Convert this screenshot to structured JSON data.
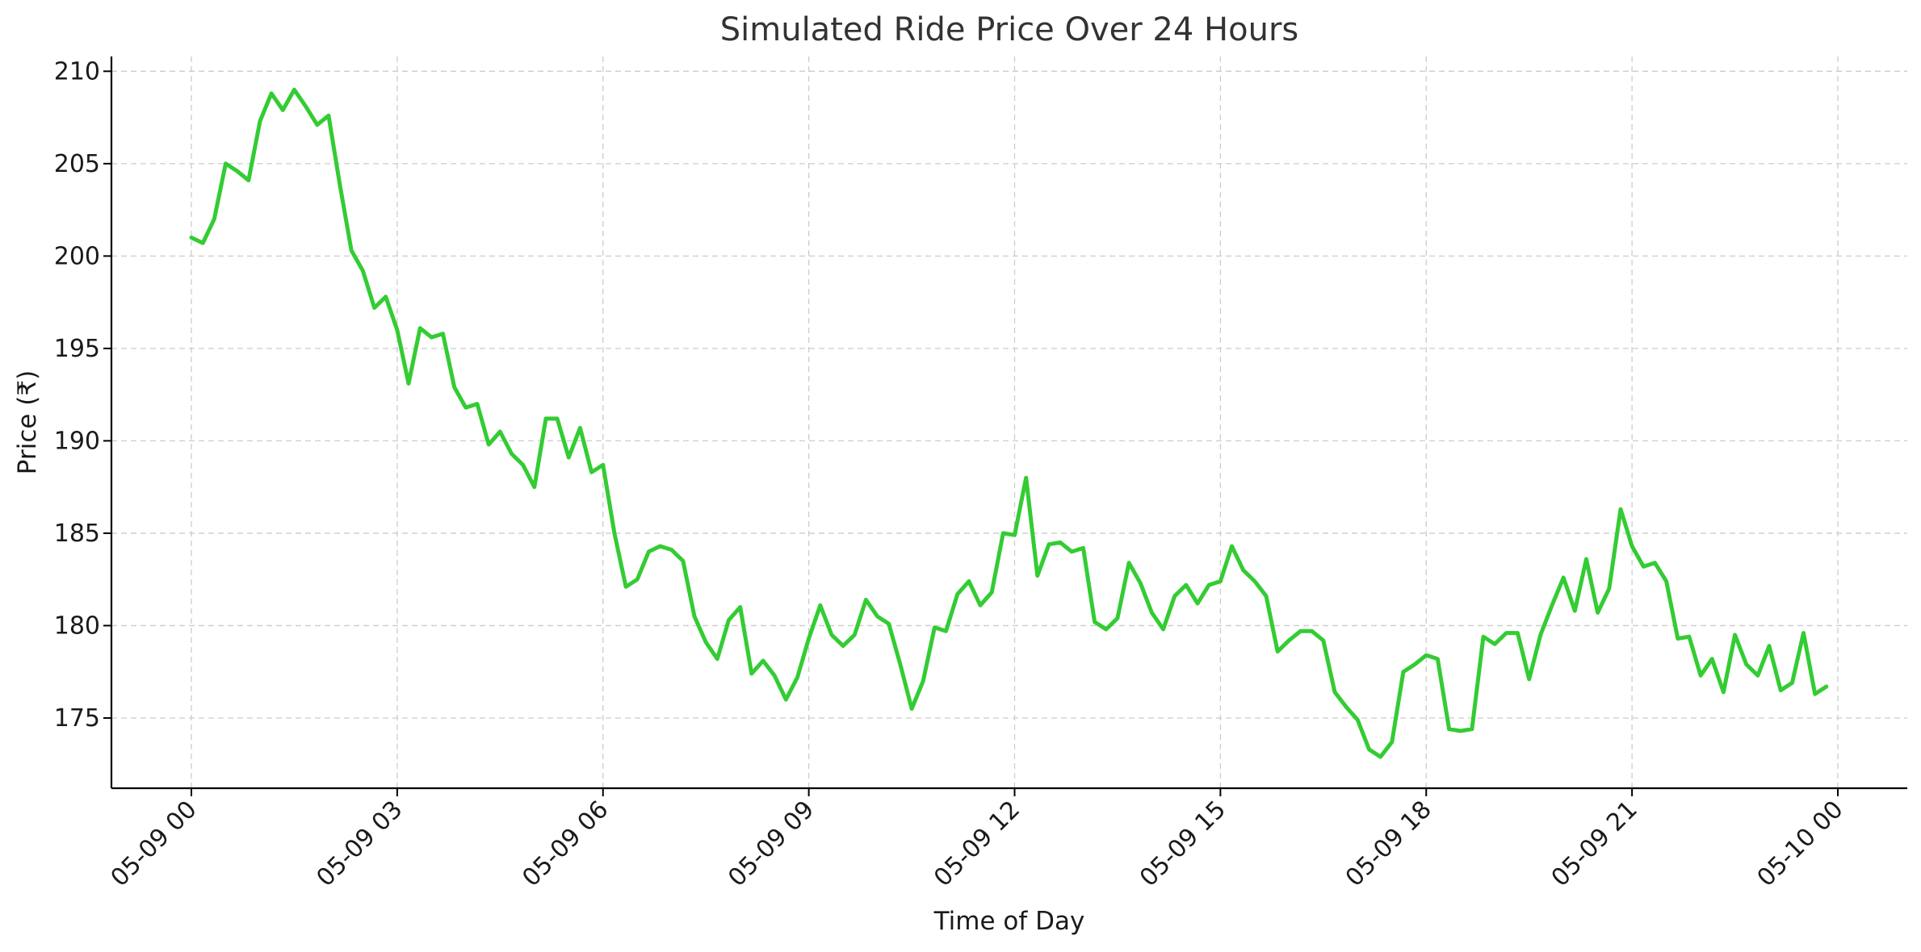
{
  "chart_data": {
    "type": "line",
    "title": "Simulated Ride Price Over 24 Hours",
    "xlabel": "Time of Day",
    "ylabel": "Price (₹)",
    "ylim": [
      171.2,
      210.8
    ],
    "xlim": [
      "2024-05-09 00:00",
      "2024-05-10 00:00"
    ],
    "x_tick_labels": [
      "05-09 00",
      "05-09 03",
      "05-09 06",
      "05-09 09",
      "05-09 12",
      "05-09 15",
      "05-09 18",
      "05-09 21",
      "05-10 00"
    ],
    "y_ticks": [
      175,
      180,
      185,
      190,
      195,
      200,
      205,
      210
    ],
    "grid": true,
    "line_color": "#33cc33",
    "x_interval_minutes": 10,
    "x_first": "2024-05-09 00:00",
    "series": [
      {
        "values": [
          201.0,
          200.7,
          202.0,
          205.0,
          204.6,
          204.1,
          207.3,
          208.8,
          207.9,
          209.0,
          208.1,
          207.1,
          207.6,
          203.8,
          200.3,
          199.2,
          197.2,
          197.8,
          196.0,
          193.1,
          196.1,
          195.6,
          195.8,
          192.9,
          191.8,
          192.0,
          189.8,
          190.5,
          189.3,
          188.7,
          187.5,
          191.2,
          191.2,
          189.1,
          190.7,
          188.3,
          188.7,
          185.0,
          182.1,
          182.5,
          184.0,
          184.3,
          184.1,
          183.5,
          180.5,
          179.1,
          178.2,
          180.3,
          181.0,
          177.4,
          178.1,
          177.3,
          176.0,
          177.2,
          179.3,
          181.1,
          179.5,
          178.9,
          179.5,
          181.4,
          180.5,
          180.1,
          177.9,
          175.5,
          177.0,
          179.9,
          179.7,
          181.7,
          182.4,
          181.1,
          181.8,
          185.0,
          184.9,
          188.0,
          182.7,
          184.4,
          184.5,
          184.0,
          184.2,
          180.2,
          179.8,
          180.4,
          183.4,
          182.3,
          180.7,
          179.8,
          181.6,
          182.2,
          181.2,
          182.2,
          182.4,
          184.3,
          183.0,
          182.4,
          181.6,
          178.6,
          179.2,
          179.7,
          179.7,
          179.2,
          176.4,
          175.6,
          174.9,
          173.3,
          172.9,
          173.7,
          177.5,
          177.9,
          178.4,
          178.2,
          174.4,
          174.3,
          174.4,
          179.4,
          179.0,
          179.6,
          179.6,
          177.1,
          179.5,
          181.1,
          182.6,
          180.8,
          183.6,
          180.7,
          182.0,
          186.3,
          184.3,
          183.2,
          183.4,
          182.4,
          179.3,
          179.4,
          177.3,
          178.2,
          176.4,
          179.5,
          177.9,
          177.3,
          178.9,
          176.5,
          176.9,
          179.6,
          176.3,
          176.7
        ]
      }
    ]
  }
}
